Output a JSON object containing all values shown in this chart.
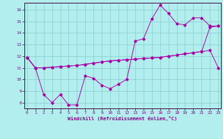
{
  "background_color": "#b2eeee",
  "grid_color": "#88cccc",
  "line_color": "#aa00aa",
  "xlim": [
    0,
    23
  ],
  "ylim": [
    7.5,
    16.6
  ],
  "yticks": [
    8,
    9,
    10,
    11,
    12,
    13,
    14,
    15,
    16
  ],
  "xticks": [
    0,
    1,
    2,
    3,
    4,
    5,
    6,
    7,
    8,
    9,
    10,
    11,
    12,
    13,
    14,
    15,
    16,
    17,
    18,
    19,
    20,
    21,
    22,
    23
  ],
  "xlabel": "Windchill (Refroidissement éolien,°C)",
  "series1_x": [
    0,
    1,
    2,
    3,
    4,
    5,
    6,
    7,
    8,
    9,
    10,
    11,
    12,
    13,
    14,
    15,
    16,
    17,
    18,
    19,
    20,
    21,
    22,
    23
  ],
  "series1_y": [
    11.9,
    11.0,
    11.0,
    11.05,
    11.1,
    11.15,
    11.2,
    11.3,
    11.4,
    11.5,
    11.6,
    11.65,
    11.7,
    11.75,
    11.8,
    11.85,
    11.9,
    12.0,
    12.1,
    12.2,
    12.3,
    12.4,
    12.5,
    11.0
  ],
  "series2_x": [
    0,
    1,
    2,
    3,
    4,
    5,
    6,
    7,
    8,
    9,
    10,
    11,
    12,
    13,
    14,
    15,
    16,
    17,
    18,
    19,
    20,
    21,
    22,
    23
  ],
  "series2_y": [
    11.9,
    11.0,
    11.0,
    11.05,
    11.1,
    11.15,
    11.2,
    11.3,
    11.4,
    11.5,
    11.6,
    11.65,
    11.7,
    11.75,
    11.8,
    11.85,
    11.9,
    12.0,
    12.1,
    12.2,
    12.3,
    12.4,
    14.5,
    14.6
  ],
  "series3_x": [
    0,
    1,
    2,
    3,
    4,
    5,
    6,
    7,
    8,
    9,
    10,
    11,
    12,
    13,
    14,
    15,
    16,
    17,
    18,
    19,
    20,
    21,
    22,
    23
  ],
  "series3_y": [
    11.9,
    11.0,
    8.7,
    8.0,
    8.7,
    7.8,
    7.8,
    10.3,
    10.1,
    9.5,
    9.2,
    9.6,
    10.0,
    13.3,
    13.5,
    15.2,
    16.4,
    15.7,
    14.8,
    14.7,
    15.3,
    15.3,
    14.6,
    14.6
  ]
}
